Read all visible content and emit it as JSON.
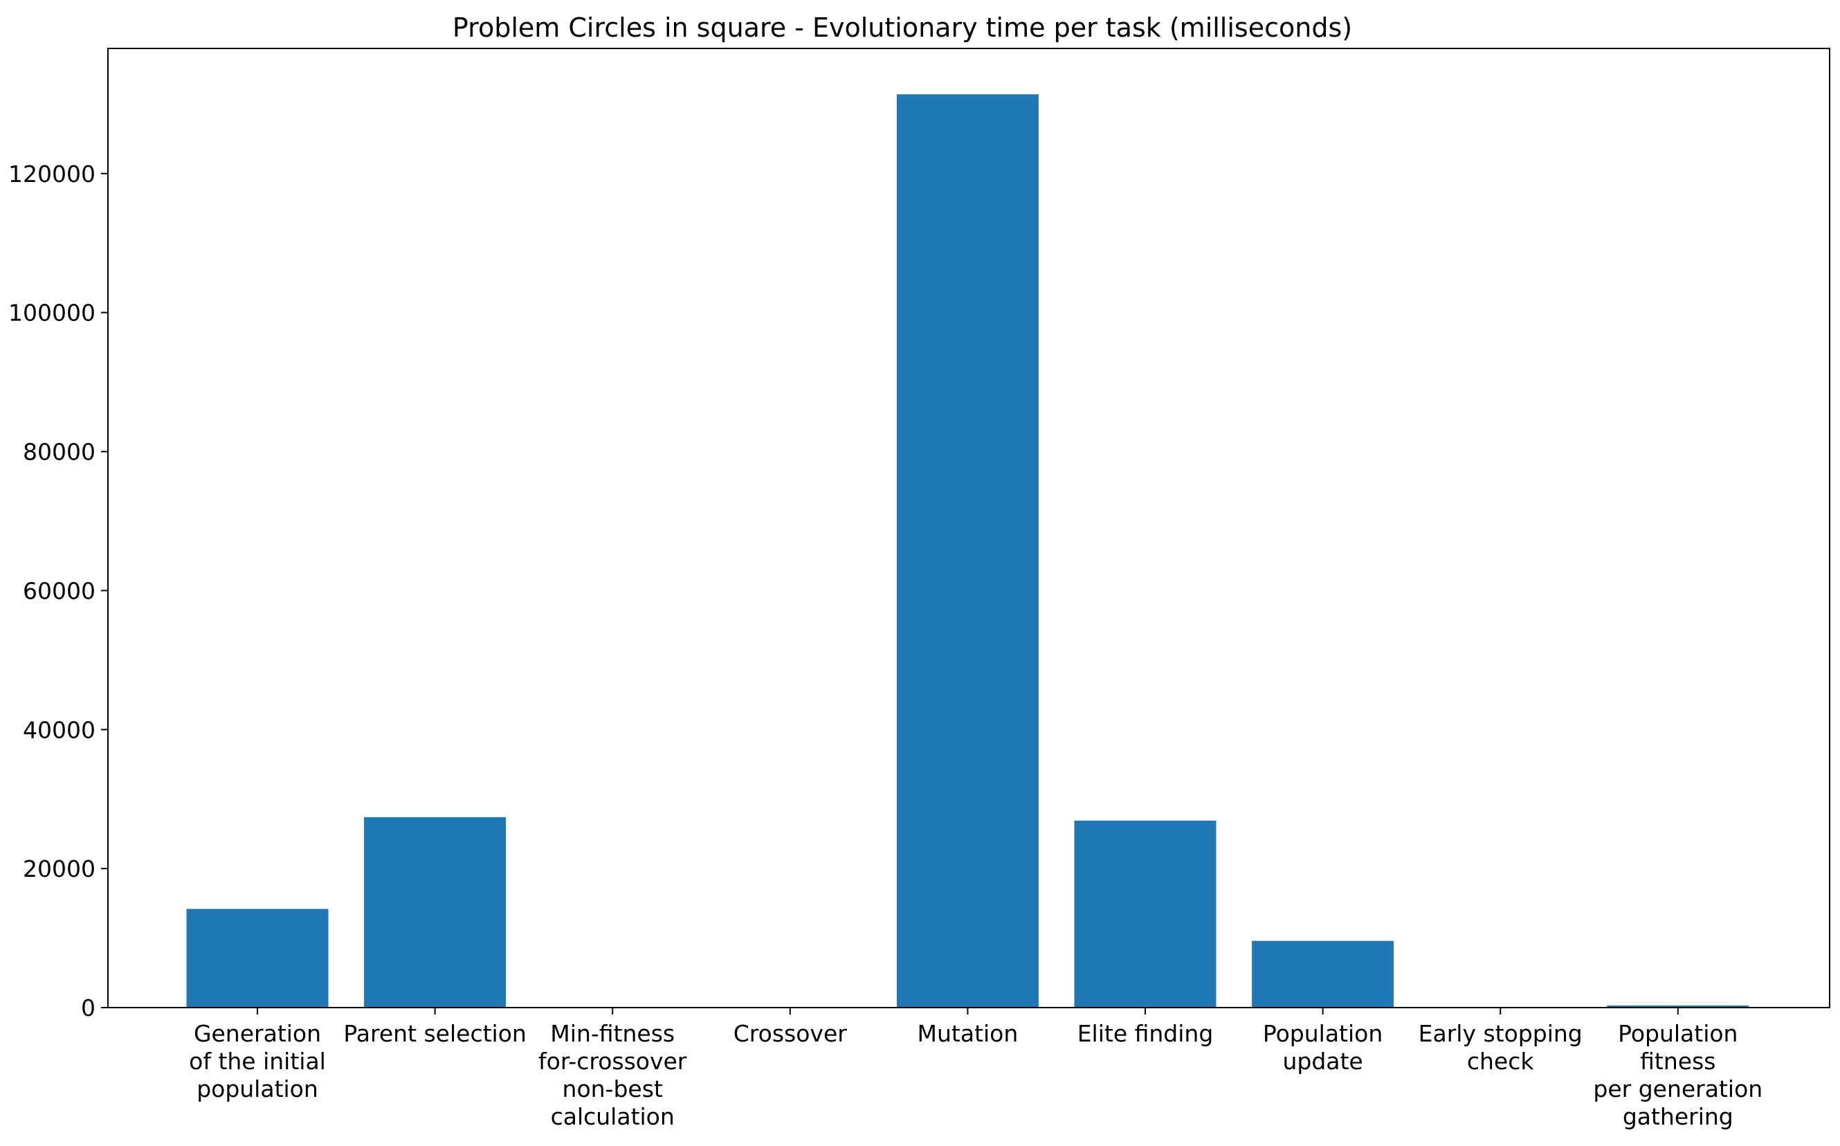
{
  "chart_data": {
    "type": "bar",
    "title": "Problem Circles in square - Evolutionary time per task (milliseconds)",
    "xlabel": "",
    "ylabel": "",
    "categories": [
      [
        "Generation",
        "of the initial",
        "population"
      ],
      [
        "Parent selection"
      ],
      [
        "Min-fitness",
        "for-crossover",
        "non-best",
        "calculation"
      ],
      [
        "Crossover"
      ],
      [
        "Mutation"
      ],
      [
        "Elite finding"
      ],
      [
        "Population",
        "update"
      ],
      [
        "Early stopping",
        "check"
      ],
      [
        "Population",
        "fitness",
        "per generation",
        "gathering"
      ]
    ],
    "values": [
      14200,
      27400,
      0,
      0,
      131400,
      26900,
      9600,
      50,
      300
    ],
    "ylim": [
      0,
      138000
    ],
    "yticks": [
      0,
      20000,
      40000,
      60000,
      80000,
      100000,
      120000
    ],
    "grid": false,
    "legend": "none",
    "bar_color": "#1f77b4"
  }
}
